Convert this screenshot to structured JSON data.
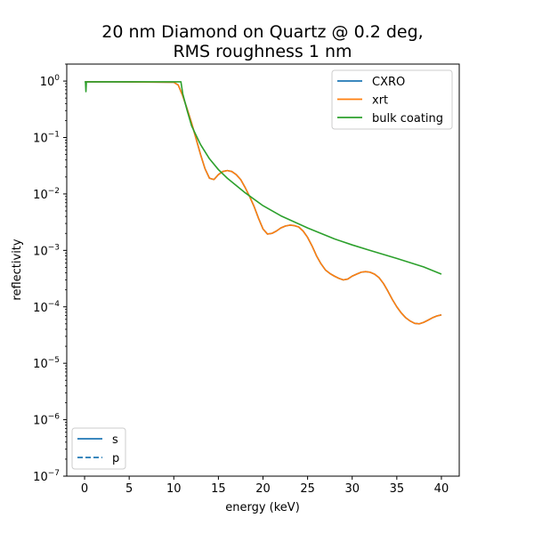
{
  "chart_data": {
    "type": "line",
    "title_lines": [
      "20 nm Diamond on Quartz @ 0.2 deg,",
      "RMS roughness 1 nm"
    ],
    "xlabel": "energy (keV)",
    "ylabel": "reflectivity",
    "xlim": [
      -2,
      42
    ],
    "ylim": [
      1e-07,
      2
    ],
    "yscale": "log",
    "grid": false,
    "xticks": [
      0,
      5,
      10,
      15,
      20,
      25,
      30,
      35,
      40
    ],
    "xtick_labels": [
      "0",
      "5",
      "10",
      "15",
      "20",
      "25",
      "30",
      "35",
      "40"
    ],
    "yticks": [
      1e-07,
      1e-06,
      1e-05,
      0.0001,
      0.001,
      0.01,
      0.1,
      1
    ],
    "ytick_labels": [
      {
        "base": "10",
        "exp": "−7"
      },
      {
        "base": "10",
        "exp": "−6"
      },
      {
        "base": "10",
        "exp": "−5"
      },
      {
        "base": "10",
        "exp": "−4"
      },
      {
        "base": "10",
        "exp": "−3"
      },
      {
        "base": "10",
        "exp": "−2"
      },
      {
        "base": "10",
        "exp": "−1"
      },
      {
        "base": "10",
        "exp": "0"
      }
    ],
    "series": [
      {
        "name": "CXRO",
        "color": "#1f77b4",
        "x": [
          0.1,
          1,
          5,
          10,
          10.5,
          11,
          11.5,
          12,
          12.5,
          13,
          13.5,
          14,
          14.5,
          15,
          15.5,
          16,
          16.5,
          17,
          17.5,
          18,
          18.5,
          19,
          19.5,
          20,
          20.5,
          21,
          21.5,
          22,
          22.5,
          23,
          23.5,
          24,
          24.5,
          25,
          25.5,
          26,
          26.5,
          27,
          27.5,
          28,
          28.5,
          29,
          29.5,
          30,
          30.5,
          31,
          31.5,
          32,
          32.5,
          33,
          33.5,
          34,
          34.5,
          35,
          35.5,
          36,
          36.5,
          37,
          37.5,
          38,
          38.5,
          39,
          39.5,
          40
        ],
        "y": [
          0.97,
          0.97,
          0.965,
          0.95,
          0.85,
          0.55,
          0.32,
          0.18,
          0.095,
          0.05,
          0.028,
          0.019,
          0.018,
          0.022,
          0.025,
          0.026,
          0.025,
          0.022,
          0.018,
          0.013,
          0.009,
          0.006,
          0.0037,
          0.0024,
          0.00195,
          0.002,
          0.0022,
          0.0025,
          0.0027,
          0.0028,
          0.00275,
          0.0026,
          0.0022,
          0.0017,
          0.0012,
          0.0008,
          0.00058,
          0.00045,
          0.00039,
          0.00035,
          0.00032,
          0.0003,
          0.00031,
          0.00035,
          0.00038,
          0.00041,
          0.00042,
          0.00041,
          0.00038,
          0.00033,
          0.00026,
          0.00019,
          0.000135,
          0.0001,
          7.8e-05,
          6.4e-05,
          5.6e-05,
          5.1e-05,
          5e-05,
          5.3e-05,
          5.8e-05,
          6.4e-05,
          6.9e-05,
          7.2e-05
        ]
      },
      {
        "name": "xrt",
        "color": "#ff7f0e",
        "x": [
          0.1,
          1,
          5,
          10,
          10.5,
          11,
          11.5,
          12,
          12.5,
          13,
          13.5,
          14,
          14.5,
          15,
          15.5,
          16,
          16.5,
          17,
          17.5,
          18,
          18.5,
          19,
          19.5,
          20,
          20.5,
          21,
          21.5,
          22,
          22.5,
          23,
          23.5,
          24,
          24.5,
          25,
          25.5,
          26,
          26.5,
          27,
          27.5,
          28,
          28.5,
          29,
          29.5,
          30,
          30.5,
          31,
          31.5,
          32,
          32.5,
          33,
          33.5,
          34,
          34.5,
          35,
          35.5,
          36,
          36.5,
          37,
          37.5,
          38,
          38.5,
          39,
          39.5,
          40
        ],
        "y": [
          0.97,
          0.97,
          0.965,
          0.95,
          0.85,
          0.55,
          0.32,
          0.18,
          0.095,
          0.05,
          0.028,
          0.019,
          0.018,
          0.022,
          0.025,
          0.026,
          0.025,
          0.022,
          0.018,
          0.013,
          0.009,
          0.006,
          0.0037,
          0.0024,
          0.00195,
          0.002,
          0.0022,
          0.0025,
          0.0027,
          0.0028,
          0.00275,
          0.0026,
          0.0022,
          0.0017,
          0.0012,
          0.0008,
          0.00058,
          0.00045,
          0.00039,
          0.00035,
          0.00032,
          0.0003,
          0.00031,
          0.00035,
          0.00038,
          0.00041,
          0.00042,
          0.00041,
          0.00038,
          0.00033,
          0.00026,
          0.00019,
          0.000135,
          0.0001,
          7.8e-05,
          6.4e-05,
          5.6e-05,
          5.1e-05,
          5e-05,
          5.3e-05,
          5.8e-05,
          6.4e-05,
          6.9e-05,
          7.2e-05
        ]
      },
      {
        "name": "bulk coating",
        "color": "#2ca02c",
        "x": [
          0,
          0.1,
          0.15,
          0.2,
          0.25,
          0.3,
          1,
          5,
          10,
          10.5,
          10.8,
          11,
          11.5,
          12,
          13,
          14,
          15,
          16,
          18,
          20,
          22,
          25,
          28,
          30,
          32,
          35,
          38,
          40
        ],
        "y": [
          0.97,
          0.97,
          0.65,
          0.97,
          0.97,
          0.97,
          0.97,
          0.97,
          0.97,
          0.97,
          0.97,
          0.6,
          0.3,
          0.16,
          0.075,
          0.042,
          0.027,
          0.019,
          0.0105,
          0.0062,
          0.0041,
          0.0025,
          0.0016,
          0.00125,
          0.001,
          0.00072,
          0.00051,
          0.00038
        ]
      }
    ],
    "legend": {
      "placement": "upper right",
      "entries": [
        "CXRO",
        "xrt",
        "bulk coating"
      ]
    },
    "legend2": {
      "placement": "lower left",
      "entries": [
        {
          "label": "s",
          "style": "solid",
          "color": "#1f77b4"
        },
        {
          "label": "p",
          "style": "dashed",
          "color": "#1f77b4"
        }
      ]
    }
  }
}
